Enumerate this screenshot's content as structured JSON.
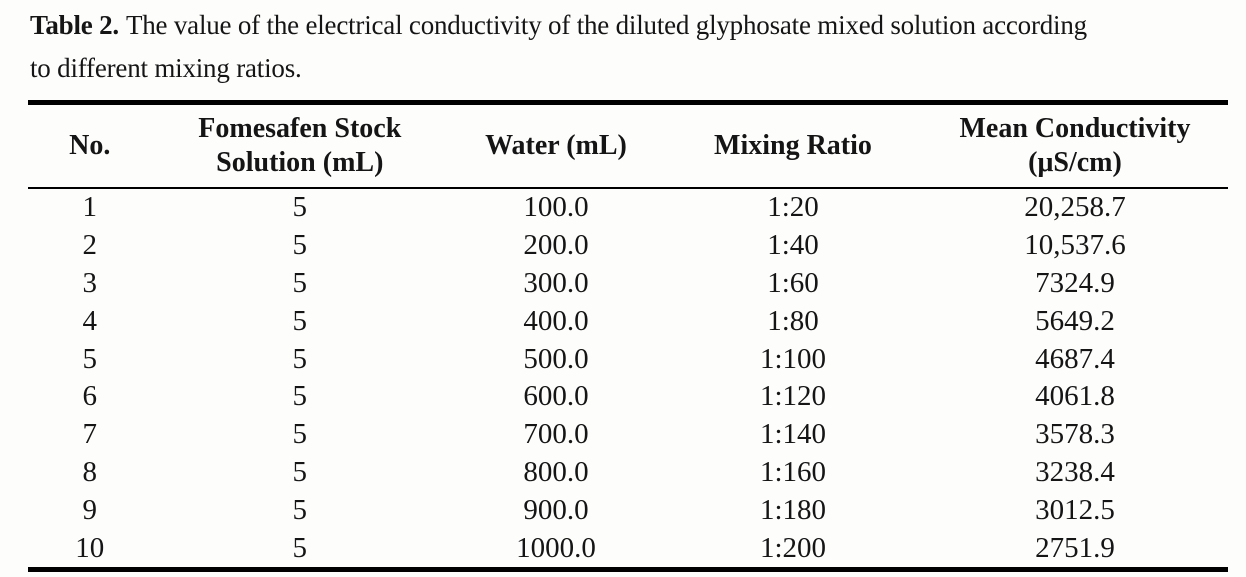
{
  "caption": {
    "label": "Table 2.",
    "line1": "The value of the electrical conductivity of the diluted glyphosate mixed solution according",
    "line2": "to different mixing ratios."
  },
  "table": {
    "columns": [
      "No.",
      "Fomesafen Stock\nSolution (mL)",
      "Water (mL)",
      "Mixing Ratio",
      "Mean Conductivity\n(μS/cm)"
    ],
    "rows": [
      [
        "1",
        "5",
        "100.0",
        "1:20",
        "20,258.7"
      ],
      [
        "2",
        "5",
        "200.0",
        "1:40",
        "10,537.6"
      ],
      [
        "3",
        "5",
        "300.0",
        "1:60",
        "7324.9"
      ],
      [
        "4",
        "5",
        "400.0",
        "1:80",
        "5649.2"
      ],
      [
        "5",
        "5",
        "500.0",
        "1:100",
        "4687.4"
      ],
      [
        "6",
        "5",
        "600.0",
        "1:120",
        "4061.8"
      ],
      [
        "7",
        "5",
        "700.0",
        "1:140",
        "3578.3"
      ],
      [
        "8",
        "5",
        "800.0",
        "1:160",
        "3238.4"
      ],
      [
        "9",
        "5",
        "900.0",
        "1:180",
        "3012.5"
      ],
      [
        "10",
        "5",
        "1000.0",
        "1:200",
        "2751.9"
      ]
    ]
  },
  "colors": {
    "text": "#151515",
    "rule": "#000000",
    "background": "#fdfdfc"
  }
}
